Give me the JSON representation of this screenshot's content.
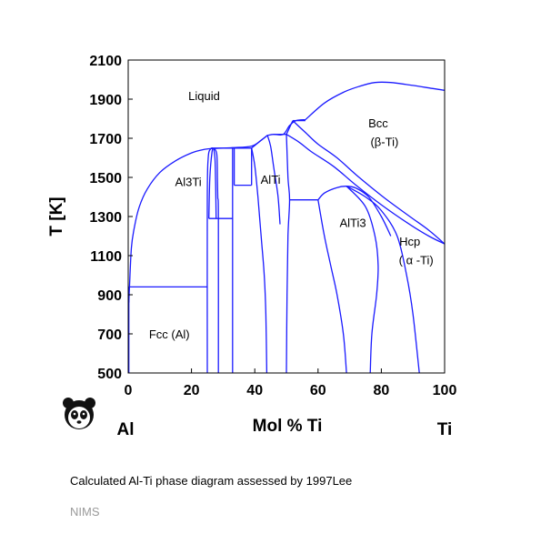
{
  "chart_data": {
    "type": "phase-diagram",
    "xlabel": "Mol % Ti",
    "ylabel": "T [K]",
    "xlim": [
      0,
      100
    ],
    "ylim": [
      500,
      2100
    ],
    "x_ticks": [
      0,
      20,
      40,
      60,
      80,
      100
    ],
    "y_ticks": [
      500,
      700,
      900,
      1100,
      1300,
      1500,
      1700,
      1900,
      2100
    ],
    "end_labels": {
      "left": "Al",
      "right": "Ti"
    },
    "grid": false,
    "line_color": "#1a1aff",
    "regions": [
      {
        "label": "Liquid",
        "x": 24,
        "y": 1915
      },
      {
        "label": "Bcc",
        "x": 79,
        "y": 1775
      },
      {
        "label": "(β-Ti)",
        "x": 81,
        "y": 1680
      },
      {
        "label": "Al3Ti",
        "x": 19,
        "y": 1475
      },
      {
        "label": "AlTi",
        "x": 45,
        "y": 1485
      },
      {
        "label": "AlTi3",
        "x": 71,
        "y": 1265
      },
      {
        "label": "Hcp",
        "x": 89,
        "y": 1170
      },
      {
        "label": "( α -Ti)",
        "x": 91,
        "y": 1075
      },
      {
        "label": "Fcc (Al)",
        "x": 13,
        "y": 695
      }
    ],
    "boundaries": [
      {
        "name": "liquidus-al-side",
        "points": [
          [
            0.2,
            860
          ],
          [
            0.4,
            940
          ],
          [
            1,
            1140
          ],
          [
            2,
            1250
          ],
          [
            3.5,
            1350
          ],
          [
            6,
            1440
          ],
          [
            10,
            1525
          ],
          [
            15,
            1585
          ],
          [
            20,
            1625
          ],
          [
            24,
            1643
          ],
          [
            27,
            1648
          ]
        ]
      },
      {
        "name": "eutectic-line-940",
        "points": [
          [
            0.2,
            940
          ],
          [
            25,
            940
          ]
        ]
      },
      {
        "name": "fcc-solvus",
        "points": [
          [
            0.2,
            500
          ],
          [
            0.2,
            940
          ]
        ]
      },
      {
        "name": "al3ti-left-a",
        "points": [
          [
            25,
            500
          ],
          [
            25,
            1400
          ],
          [
            25.3,
            1600
          ],
          [
            26,
            1645
          ],
          [
            27,
            1650
          ]
        ]
      },
      {
        "name": "al3ti-left-b",
        "points": [
          [
            25.5,
            1290
          ],
          [
            25.8,
            1500
          ],
          [
            26.5,
            1630
          ],
          [
            27,
            1650
          ]
        ]
      },
      {
        "name": "al3ti-right-a",
        "points": [
          [
            27,
            1650
          ],
          [
            27.4,
            1600
          ],
          [
            27.6,
            1500
          ],
          [
            27.7,
            1400
          ],
          [
            27.8,
            1290
          ]
        ]
      },
      {
        "name": "al3ti-right-b",
        "points": [
          [
            27,
            1650
          ],
          [
            28,
            1620
          ],
          [
            28.2,
            1500
          ],
          [
            28.3,
            1400
          ],
          [
            28.5,
            1290
          ],
          [
            28.5,
            500
          ]
        ]
      },
      {
        "name": "peritectoid-1290",
        "points": [
          [
            25.5,
            1290
          ],
          [
            33,
            1290
          ]
        ]
      },
      {
        "name": "tie-1650",
        "points": [
          [
            27,
            1650
          ],
          [
            33,
            1650
          ]
        ]
      },
      {
        "name": "phase-line-33",
        "points": [
          [
            33,
            500
          ],
          [
            33,
            1650
          ]
        ]
      },
      {
        "name": "phase-line-33-5",
        "points": [
          [
            33.5,
            1460
          ],
          [
            33.5,
            1650
          ]
        ]
      },
      {
        "name": "tie-1460",
        "points": [
          [
            33.5,
            1460
          ],
          [
            39,
            1460
          ]
        ]
      },
      {
        "name": "tie-1650-b",
        "points": [
          [
            33,
            1650
          ],
          [
            39,
            1650
          ]
        ]
      },
      {
        "name": "phase-line-39",
        "points": [
          [
            39,
            1460
          ],
          [
            39,
            1650
          ]
        ]
      },
      {
        "name": "liquidus-mid-1",
        "points": [
          [
            27,
            1648
          ],
          [
            33,
            1652
          ],
          [
            39,
            1660
          ],
          [
            42,
            1690
          ],
          [
            44,
            1715
          ]
        ]
      },
      {
        "name": "alti-left",
        "points": [
          [
            39,
            1650
          ],
          [
            40,
            1560
          ],
          [
            41,
            1400
          ],
          [
            42,
            1200
          ],
          [
            43,
            1000
          ],
          [
            43.5,
            800
          ],
          [
            43.8,
            500
          ]
        ]
      },
      {
        "name": "alti-left-top",
        "points": [
          [
            39,
            1650
          ],
          [
            42,
            1690
          ],
          [
            44,
            1715
          ]
        ]
      },
      {
        "name": "liquidus-mid-2",
        "points": [
          [
            44,
            1715
          ],
          [
            46,
            1720
          ],
          [
            49,
            1720
          ],
          [
            51,
            1765
          ],
          [
            53,
            1790
          ],
          [
            56,
            1795
          ]
        ]
      },
      {
        "name": "alti-right-upper",
        "points": [
          [
            44,
            1715
          ],
          [
            45,
            1660
          ],
          [
            46,
            1550
          ],
          [
            47.3,
            1410
          ],
          [
            48,
            1260
          ]
        ]
      },
      {
        "name": "tie-1720",
        "points": [
          [
            46,
            1720
          ],
          [
            50,
            1720
          ]
        ]
      },
      {
        "name": "alti-right-lower",
        "points": [
          [
            50,
            1720
          ],
          [
            50.5,
            1500
          ],
          [
            51,
            1385
          ],
          [
            50.5,
            1200
          ],
          [
            50.2,
            900
          ],
          [
            50,
            500
          ]
        ]
      },
      {
        "name": "tie-1790",
        "points": [
          [
            52,
            1790
          ],
          [
            56,
            1790
          ]
        ]
      },
      {
        "name": "alpha-solvus-top",
        "points": [
          [
            50,
            1720
          ],
          [
            52,
            1790
          ]
        ]
      },
      {
        "name": "tie-1385",
        "points": [
          [
            51,
            1385
          ],
          [
            60,
            1385
          ]
        ]
      },
      {
        "name": "liquidus-ti-side",
        "points": [
          [
            56,
            1795
          ],
          [
            62,
            1880
          ],
          [
            68,
            1935
          ],
          [
            73,
            1965
          ],
          [
            78,
            1985
          ],
          [
            83,
            1985
          ],
          [
            90,
            1970
          ],
          [
            96,
            1955
          ],
          [
            100,
            1945
          ]
        ]
      },
      {
        "name": "bcc-transus-1",
        "points": [
          [
            50,
            1720
          ],
          [
            54,
            1680
          ],
          [
            58,
            1630
          ],
          [
            65,
            1555
          ],
          [
            72,
            1460
          ],
          [
            80,
            1360
          ],
          [
            88,
            1270
          ],
          [
            95,
            1200
          ],
          [
            100,
            1160
          ]
        ]
      },
      {
        "name": "bcc-transus-2",
        "points": [
          [
            52,
            1790
          ],
          [
            56,
            1730
          ],
          [
            60,
            1670
          ],
          [
            66,
            1600
          ],
          [
            73,
            1500
          ],
          [
            81,
            1395
          ],
          [
            89,
            1300
          ],
          [
            95,
            1230
          ],
          [
            100,
            1160
          ]
        ]
      },
      {
        "name": "alti3-dome",
        "points": [
          [
            60,
            1385
          ],
          [
            62,
            1420
          ],
          [
            66,
            1448
          ],
          [
            69,
            1455
          ],
          [
            72,
            1445
          ],
          [
            76,
            1400
          ],
          [
            80,
            1300
          ],
          [
            83,
            1200
          ]
        ]
      },
      {
        "name": "alti3-left-side",
        "points": [
          [
            60,
            1385
          ],
          [
            62,
            1200
          ],
          [
            64,
            1050
          ],
          [
            66,
            900
          ],
          [
            68,
            700
          ],
          [
            69,
            500
          ]
        ]
      },
      {
        "name": "alti3-right-side",
        "points": [
          [
            69,
            1455
          ],
          [
            75,
            1350
          ],
          [
            78,
            1200
          ],
          [
            79,
            1050
          ],
          [
            78.5,
            900
          ],
          [
            77,
            700
          ],
          [
            76.5,
            500
          ]
        ]
      },
      {
        "name": "hcp-solvus",
        "points": [
          [
            69,
            1455
          ],
          [
            75,
            1400
          ],
          [
            80,
            1330
          ],
          [
            85,
            1200
          ],
          [
            88,
            1000
          ],
          [
            90,
            800
          ],
          [
            92,
            500
          ]
        ]
      }
    ]
  },
  "caption": "Calculated Al-Ti phase diagram assessed by 1997Lee",
  "credit": "NIMS",
  "logo": {
    "icon": "panda-icon"
  }
}
